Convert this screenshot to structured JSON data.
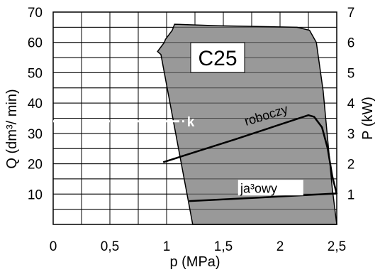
{
  "chart_data": {
    "type": "line",
    "title": "",
    "xlabel": "p (MPa)",
    "ylabel_left": "Q (dm³/ min)",
    "ylabel_right": "P (kW)",
    "xlim": [
      0,
      2.5
    ],
    "ylim_left": [
      0,
      70
    ],
    "ylim_right": [
      0,
      7
    ],
    "x_ticks": [
      {
        "value": 0,
        "label": "0"
      },
      {
        "value": 0.5,
        "label": "0,5"
      },
      {
        "value": 1,
        "label": "1"
      },
      {
        "value": 1.5,
        "label": "1,5"
      },
      {
        "value": 2,
        "label": "2"
      },
      {
        "value": 2.5,
        "label": "2,5"
      }
    ],
    "y_left_ticks": [
      {
        "value": 10,
        "label": "10"
      },
      {
        "value": 20,
        "label": "20"
      },
      {
        "value": 30,
        "label": "30"
      },
      {
        "value": 40,
        "label": "40"
      },
      {
        "value": 50,
        "label": "50"
      },
      {
        "value": 60,
        "label": "60"
      },
      {
        "value": 70,
        "label": "70"
      }
    ],
    "y_right_ticks": [
      {
        "value": 1,
        "label": "1"
      },
      {
        "value": 2,
        "label": "2"
      },
      {
        "value": 3,
        "label": "3"
      },
      {
        "value": 4,
        "label": "4"
      },
      {
        "value": 5,
        "label": "5"
      },
      {
        "value": 6,
        "label": "6"
      },
      {
        "value": 7,
        "label": "7"
      }
    ],
    "grid": true,
    "grid_x_step": 0.25,
    "grid_y_step": 5,
    "region": {
      "label": "C25",
      "fill": "#999999",
      "x": [
        0.99,
        1.05,
        1.07,
        1.45,
        2.15,
        2.26,
        2.32,
        2.38,
        2.42,
        2.46,
        2.5,
        1.23,
        0.95,
        0.92,
        0.98
      ],
      "y": [
        61,
        64,
        66,
        65.5,
        65,
        64,
        60,
        44,
        28,
        12,
        0,
        0,
        56,
        57,
        60
      ]
    },
    "series": [
      {
        "name": "roboczy",
        "axis": "right",
        "color": "#000000",
        "x": [
          0.97,
          1.6,
          2.25,
          2.3,
          2.37,
          2.42,
          2.46,
          2.5
        ],
        "y": [
          2.05,
          2.8,
          3.6,
          3.55,
          3.2,
          2.5,
          1.6,
          1.0
        ]
      },
      {
        "name": "ja³owy",
        "axis": "right",
        "color": "#000000",
        "x": [
          1.2,
          1.8,
          2.5
        ],
        "y": [
          0.77,
          0.88,
          1.02
        ]
      }
    ],
    "annotations": [
      {
        "text": "k",
        "x": 1.18,
        "y_left": 34
      }
    ]
  }
}
